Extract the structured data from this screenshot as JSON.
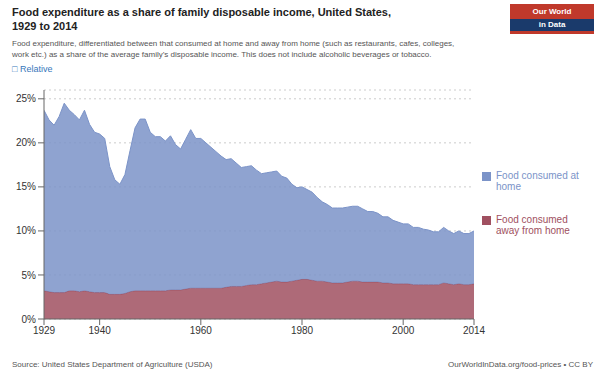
{
  "chart_data": {
    "type": "area",
    "stacked": true,
    "grid": true,
    "legend": "right",
    "title": "Food expenditure as a share of family disposable income, United States,\n1929 to 2014",
    "subtitle": "Food expenditure, differentiated between that consumed at home and away from home (such as restaurants, cafes, colleges,\nwork etc.) as a share of the average family’s disposable income. This does not include alcoholic beverages or tobacco.",
    "annotations": [
      "□ Relative",
      "Source: United States Department of Agriculture (USDA)",
      "OurWorldInData.org/food-prices • CC BY",
      "Our World",
      "in Data"
    ],
    "x": [
      1929,
      1930,
      1931,
      1932,
      1933,
      1934,
      1935,
      1936,
      1937,
      1938,
      1939,
      1940,
      1941,
      1942,
      1943,
      1944,
      1945,
      1946,
      1947,
      1948,
      1949,
      1950,
      1951,
      1952,
      1953,
      1954,
      1955,
      1956,
      1957,
      1958,
      1959,
      1960,
      1961,
      1962,
      1963,
      1964,
      1965,
      1966,
      1967,
      1968,
      1969,
      1970,
      1971,
      1972,
      1973,
      1974,
      1975,
      1976,
      1977,
      1978,
      1979,
      1980,
      1981,
      1982,
      1983,
      1984,
      1985,
      1986,
      1987,
      1988,
      1989,
      1990,
      1991,
      1992,
      1993,
      1994,
      1995,
      1996,
      1997,
      1998,
      1999,
      2000,
      2001,
      2002,
      2003,
      2004,
      2005,
      2006,
      2007,
      2008,
      2009,
      2010,
      2011,
      2012,
      2013,
      2014
    ],
    "series": [
      {
        "name": "Food consumed\naway from home",
        "color": "#a05060",
        "values": [
          3.2,
          3.1,
          3.0,
          3.0,
          3.0,
          3.2,
          3.2,
          3.1,
          3.2,
          3.1,
          3.0,
          3.0,
          3.0,
          2.8,
          2.8,
          2.8,
          2.9,
          3.1,
          3.2,
          3.2,
          3.2,
          3.2,
          3.2,
          3.2,
          3.2,
          3.3,
          3.3,
          3.3,
          3.4,
          3.5,
          3.5,
          3.5,
          3.5,
          3.5,
          3.5,
          3.5,
          3.6,
          3.7,
          3.7,
          3.7,
          3.8,
          3.9,
          3.9,
          4.0,
          4.1,
          4.2,
          4.3,
          4.2,
          4.2,
          4.3,
          4.4,
          4.5,
          4.5,
          4.4,
          4.3,
          4.3,
          4.2,
          4.1,
          4.1,
          4.1,
          4.2,
          4.3,
          4.3,
          4.2,
          4.2,
          4.2,
          4.2,
          4.1,
          4.1,
          4.0,
          4.0,
          4.0,
          4.0,
          3.9,
          3.9,
          3.9,
          3.9,
          3.9,
          3.9,
          4.1,
          4.0,
          3.9,
          4.0,
          3.9,
          3.9,
          4.0
        ]
      },
      {
        "name": "Food consumed at\nhome",
        "color": "#7b93c8",
        "values": [
          20.5,
          19.5,
          19.0,
          20.0,
          21.5,
          20.5,
          20.0,
          19.5,
          20.5,
          19.0,
          18.2,
          18.0,
          17.5,
          14.5,
          13.0,
          12.5,
          13.5,
          16.0,
          18.5,
          19.5,
          19.5,
          18.0,
          17.5,
          17.5,
          17.0,
          17.5,
          16.5,
          16.0,
          17.0,
          18.0,
          17.0,
          17.0,
          16.5,
          16.0,
          15.5,
          15.0,
          14.5,
          14.5,
          14.0,
          13.5,
          13.5,
          13.5,
          13.0,
          12.5,
          12.5,
          12.5,
          12.5,
          12.0,
          11.8,
          11.0,
          10.5,
          10.5,
          10.2,
          10.0,
          9.5,
          9.0,
          8.8,
          8.5,
          8.5,
          8.5,
          8.5,
          8.5,
          8.5,
          8.3,
          8.0,
          8.0,
          7.8,
          7.5,
          7.5,
          7.2,
          7.0,
          6.8,
          6.8,
          6.5,
          6.5,
          6.3,
          6.2,
          6.0,
          6.0,
          6.3,
          6.0,
          5.8,
          6.0,
          5.8,
          5.8,
          6.0
        ]
      }
    ],
    "xlim": [
      1929,
      2014
    ],
    "xticks": [
      1929,
      1940,
      1960,
      1980,
      2000,
      2014
    ],
    "ylim": [
      0,
      26
    ],
    "yticks": [
      {
        "value": 0,
        "label": "0%"
      },
      {
        "value": 5,
        "label": "5%"
      },
      {
        "value": 10,
        "label": "10%"
      },
      {
        "value": 15,
        "label": "15%"
      },
      {
        "value": 20,
        "label": "20%"
      },
      {
        "value": 25,
        "label": "25%"
      }
    ]
  }
}
